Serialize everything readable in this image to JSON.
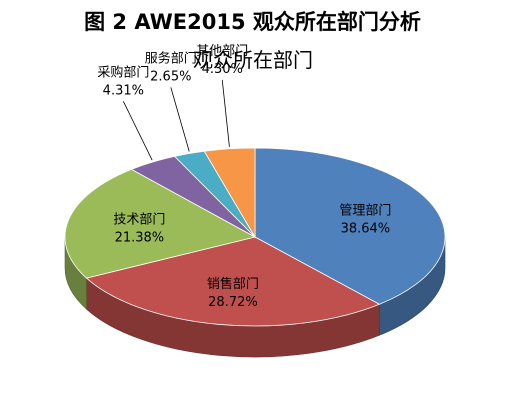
{
  "figure_title": "图 2 AWE2015 观众所在部门分析",
  "chart_data": {
    "type": "pie",
    "title": "观众所在部门",
    "categories": [
      "管理部门",
      "销售部门",
      "技术部门",
      "采购部门",
      "服务部门",
      "其他部门"
    ],
    "values": [
      38.64,
      28.72,
      21.38,
      4.31,
      2.65,
      4.3
    ],
    "value_labels": [
      "38.64%",
      "28.72%",
      "21.38%",
      "4.31%",
      "2.65%",
      "4.30%"
    ],
    "colors": [
      "#4F81BD",
      "#C0504D",
      "#9BBB59",
      "#8064A2",
      "#4BACC6",
      "#F79646"
    ],
    "style": "3d",
    "legend": "none"
  }
}
